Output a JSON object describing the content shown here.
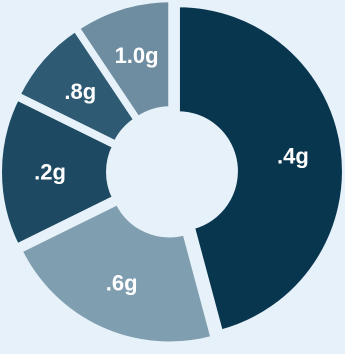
{
  "chart_data": {
    "type": "pie",
    "donut": true,
    "exploded": true,
    "start_angle_deg": 0,
    "direction": "clockwise",
    "title": "",
    "legend": "none",
    "slices": [
      {
        "label": ".4g",
        "value": 0.44,
        "color": "#09364f"
      },
      {
        "label": ".6g",
        "value": 0.21,
        "color": "#7f9eb0"
      },
      {
        "label": ".2g",
        "value": 0.14,
        "color": "#1d4a62"
      },
      {
        "label": ".8g",
        "value": 0.08,
        "color": "#2e5a73"
      },
      {
        "label": "1.0g",
        "value": 0.09,
        "color": "#6e8da0"
      }
    ],
    "background": "#e6f1f9"
  }
}
